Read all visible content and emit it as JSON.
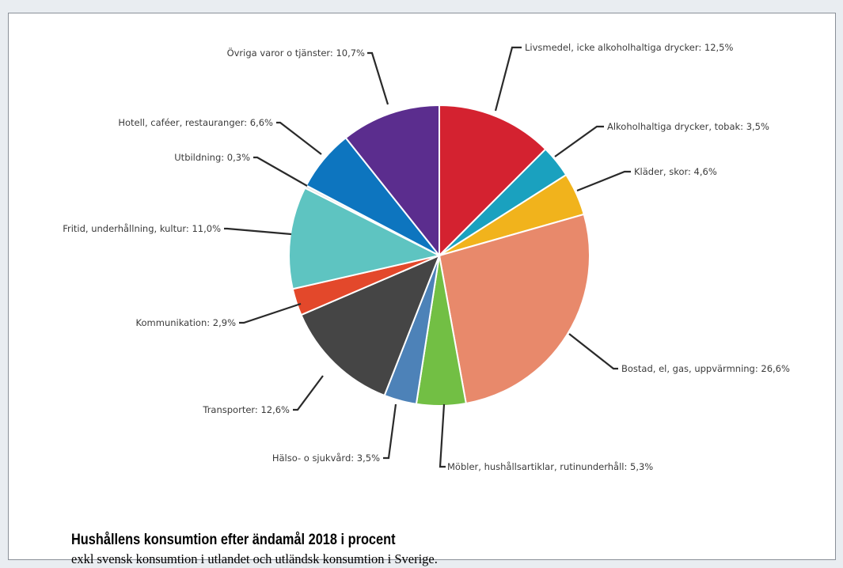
{
  "caption": {
    "title": "Hushållens konsumtion efter ändamål 2018 i procent",
    "subtitle": "exkl svensk konsumtion i utlandet och utländsk konsumtion i Sverige."
  },
  "chart_data": {
    "type": "pie",
    "title": "Hushållens konsumtion efter ändamål 2018 i procent",
    "subtitle": "exkl svensk konsumtion i utlandet och utländsk konsumtion i Sverige.",
    "unit": "%",
    "slices": [
      {
        "name": "Livsmedel, icke alkoholhaltiga drycker",
        "value": 12.5,
        "label": "Livsmedel, icke alkoholhaltiga drycker: 12,5%",
        "color": "#d42230"
      },
      {
        "name": "Alkoholhaltiga drycker, tobak",
        "value": 3.5,
        "label": "Alkoholhaltiga drycker, tobak: 3,5%",
        "color": "#1aa1bf"
      },
      {
        "name": "Kläder, skor",
        "value": 4.6,
        "label": "Kläder, skor: 4,6%",
        "color": "#f1b31c"
      },
      {
        "name": "Bostad, el, gas, uppvärmning",
        "value": 26.6,
        "label": "Bostad, el, gas, uppvärmning: 26,6%",
        "color": "#e8896b"
      },
      {
        "name": "Möbler, hushållsartiklar, rutinunderhåll",
        "value": 5.3,
        "label": "Möbler, hushållsartiklar, rutinunderhåll: 5,3%",
        "color": "#72bf44"
      },
      {
        "name": "Hälso- o sjukvård",
        "value": 3.5,
        "label": "Hälso- o sjukvård: 3,5%",
        "color": "#4d82b8"
      },
      {
        "name": "Transporter",
        "value": 12.6,
        "label": "Transporter: 12,6%",
        "color": "#454545"
      },
      {
        "name": "Kommunikation",
        "value": 2.9,
        "label": "Kommunikation: 2,9%",
        "color": "#e3482b"
      },
      {
        "name": "Fritid, underhållning, kultur",
        "value": 11.0,
        "label": "Fritid, underhållning, kultur: 11,0%",
        "color": "#5ec4c1"
      },
      {
        "name": "Utbildning",
        "value": 0.3,
        "label": "Utbildning: 0,3%",
        "color": "#e7e7e7"
      },
      {
        "name": "Hotell, caféer, restauranger",
        "value": 6.6,
        "label": "Hotell, caféer, restauranger: 6,6%",
        "color": "#0d75bf"
      },
      {
        "name": "Övriga varor o tjänster",
        "value": 10.7,
        "label": "Övriga varor o tjänster: 10,7%",
        "color": "#5b2d8e"
      }
    ]
  }
}
